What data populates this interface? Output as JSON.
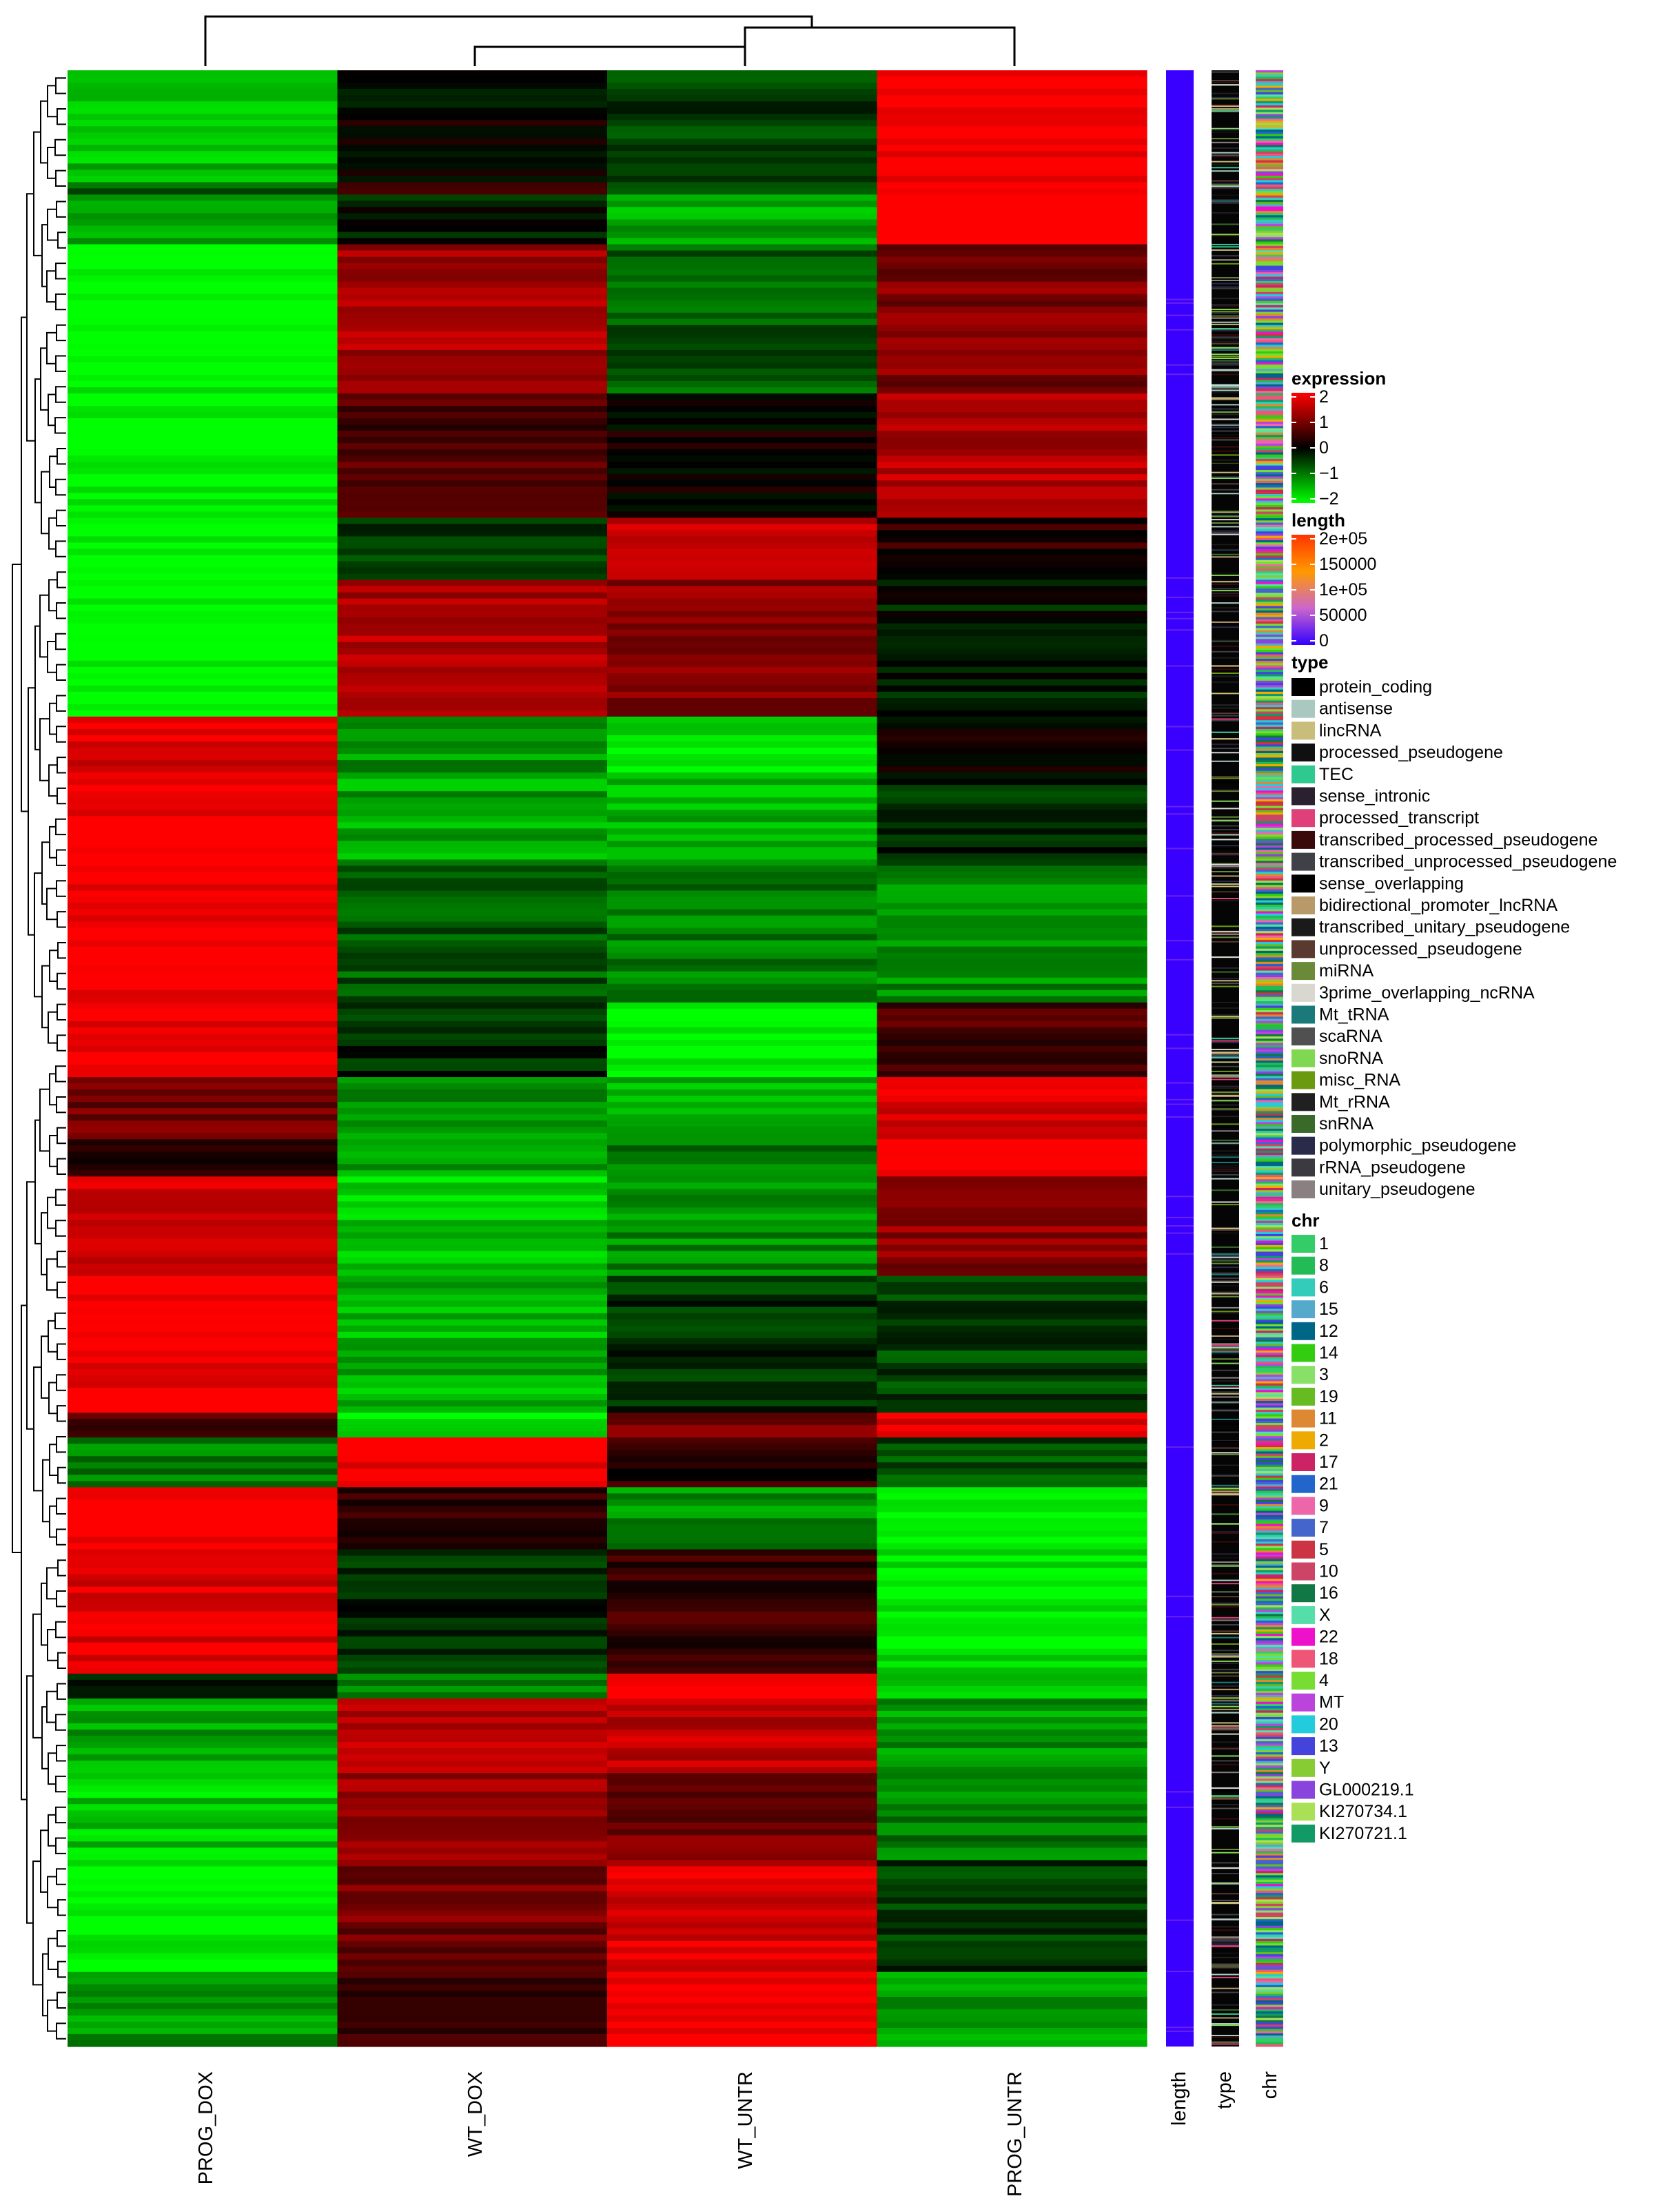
{
  "chart_data": {
    "type": "heatmap",
    "columns": [
      "PROG_DOX",
      "WT_DOX",
      "WT_UNTR",
      "PROG_UNTR"
    ],
    "column_order_clusters": [
      [
        0
      ],
      [
        [
          1,
          2
        ],
        3
      ]
    ],
    "expression_scale": {
      "min": -2,
      "max": 2
    },
    "row_blocks": [
      {
        "rows": 90,
        "values": [
          -1.5,
          0.0,
          -0.5,
          2.0
        ]
      },
      {
        "rows": 10,
        "values": [
          -0.8,
          0.3,
          -0.9,
          1.8
        ]
      },
      {
        "rows": 40,
        "values": [
          -1.2,
          -0.2,
          -1.3,
          2.3
        ]
      },
      {
        "rows": 120,
        "values": [
          -2.0,
          1.3,
          -0.7,
          1.0
        ]
      },
      {
        "rows": 100,
        "values": [
          -2.0,
          0.6,
          0.1,
          1.4
        ]
      },
      {
        "rows": 50,
        "values": [
          -2.0,
          -0.5,
          1.6,
          0.3
        ]
      },
      {
        "rows": 110,
        "values": [
          -2.0,
          1.4,
          1.1,
          -0.2
        ]
      },
      {
        "rows": 50,
        "values": [
          1.8,
          -1.2,
          -1.8,
          0.1
        ]
      },
      {
        "rows": 70,
        "values": [
          2.0,
          -1.3,
          -1.4,
          -0.3
        ]
      },
      {
        "rows": 110,
        "values": [
          2.0,
          -0.7,
          -1.0,
          -1.1
        ]
      },
      {
        "rows": 60,
        "values": [
          1.9,
          -0.3,
          -1.9,
          0.6
        ]
      },
      {
        "rows": 50,
        "values": [
          0.9,
          -1.2,
          -1.4,
          1.7
        ]
      },
      {
        "rows": 30,
        "values": [
          0.1,
          -1.3,
          -0.9,
          2.2
        ]
      },
      {
        "rows": 80,
        "values": [
          1.6,
          -1.6,
          -1.1,
          1.1
        ]
      },
      {
        "rows": 110,
        "values": [
          2.0,
          -1.4,
          -0.4,
          -0.5
        ]
      },
      {
        "rows": 20,
        "values": [
          0.6,
          -1.8,
          1.0,
          1.9
        ]
      },
      {
        "rows": 40,
        "values": [
          -1.0,
          2.0,
          0.3,
          -0.6
        ]
      },
      {
        "rows": 50,
        "values": [
          2.0,
          0.4,
          -1.1,
          -2.0
        ]
      },
      {
        "rows": 100,
        "values": [
          1.8,
          -0.3,
          0.4,
          -1.8
        ]
      },
      {
        "rows": 20,
        "values": [
          -0.4,
          -0.9,
          1.9,
          -1.6
        ]
      },
      {
        "rows": 60,
        "values": [
          -1.3,
          1.4,
          1.5,
          -1.2
        ]
      },
      {
        "rows": 70,
        "values": [
          -1.6,
          1.2,
          0.9,
          -1.0
        ]
      },
      {
        "rows": 90,
        "values": [
          -2.0,
          0.9,
          1.7,
          -0.4
        ]
      },
      {
        "rows": 60,
        "values": [
          -1.2,
          0.5,
          2.0,
          -1.3
        ]
      }
    ]
  },
  "labels": {
    "col_prog_dox": "PROG_DOX",
    "col_wt_dox": "WT_DOX",
    "col_wt_untr": "WT_UNTR",
    "col_prog_untr": "PROG_UNTR",
    "ann_length": "length",
    "ann_type": "type",
    "ann_chr": "chr"
  },
  "legend": {
    "expression": {
      "title": "expression",
      "ticks": [
        "2",
        "1",
        "0",
        "−1",
        "−2"
      ],
      "colors": [
        "#ff0000",
        "#000000",
        "#00ff00"
      ]
    },
    "length": {
      "title": "length",
      "ticks": [
        "2e+05",
        "150000",
        "1e+05",
        "50000",
        "0"
      ],
      "colors": [
        "#ff3300",
        "#ff9900",
        "#cc66cc",
        "#3300ff"
      ]
    },
    "type": {
      "title": "type",
      "items": [
        {
          "label": "protein_coding",
          "color": "#000000"
        },
        {
          "label": "antisense",
          "color": "#a8c8c0"
        },
        {
          "label": "lincRNA",
          "color": "#c8bd7a"
        },
        {
          "label": "processed_pseudogene",
          "color": "#101010"
        },
        {
          "label": "TEC",
          "color": "#2ec98f"
        },
        {
          "label": "sense_intronic",
          "color": "#2a2030"
        },
        {
          "label": "processed_transcript",
          "color": "#e0407a"
        },
        {
          "label": "transcribed_processed_pseudogene",
          "color": "#3a0a0a"
        },
        {
          "label": "transcribed_unprocessed_pseudogene",
          "color": "#404048"
        },
        {
          "label": "sense_overlapping",
          "color": "#000000"
        },
        {
          "label": "bidirectional_promoter_lncRNA",
          "color": "#b89a6a"
        },
        {
          "label": "transcribed_unitary_pseudogene",
          "color": "#1a1a1a"
        },
        {
          "label": "unprocessed_pseudogene",
          "color": "#5a3a30"
        },
        {
          "label": "miRNA",
          "color": "#6a8a3a"
        },
        {
          "label": "3prime_overlapping_ncRNA",
          "color": "#d8d8d0"
        },
        {
          "label": "Mt_tRNA",
          "color": "#1a7a7a"
        },
        {
          "label": "scaRNA",
          "color": "#505050"
        },
        {
          "label": "snoRNA",
          "color": "#80d850"
        },
        {
          "label": "misc_RNA",
          "color": "#6a9a10"
        },
        {
          "label": "Mt_rRNA",
          "color": "#202020"
        },
        {
          "label": "snRNA",
          "color": "#3a6a2a"
        },
        {
          "label": "polymorphic_pseudogene",
          "color": "#2a2a4a"
        },
        {
          "label": "rRNA_pseudogene",
          "color": "#3a3a40"
        },
        {
          "label": "unitary_pseudogene",
          "color": "#8a8080"
        }
      ]
    },
    "chr": {
      "title": "chr",
      "items": [
        {
          "label": "1",
          "color": "#33cc66"
        },
        {
          "label": "8",
          "color": "#22bb55"
        },
        {
          "label": "6",
          "color": "#33ccbb"
        },
        {
          "label": "15",
          "color": "#55aacc"
        },
        {
          "label": "12",
          "color": "#006688"
        },
        {
          "label": "14",
          "color": "#33cc11"
        },
        {
          "label": "3",
          "color": "#88e066"
        },
        {
          "label": "19",
          "color": "#66bb22"
        },
        {
          "label": "11",
          "color": "#dd8833"
        },
        {
          "label": "2",
          "color": "#eeaa00"
        },
        {
          "label": "17",
          "color": "#cc2266"
        },
        {
          "label": "21",
          "color": "#2266cc"
        },
        {
          "label": "9",
          "color": "#ee66aa"
        },
        {
          "label": "7",
          "color": "#4466cc"
        },
        {
          "label": "5",
          "color": "#cc3344"
        },
        {
          "label": "10",
          "color": "#cc4466"
        },
        {
          "label": "16",
          "color": "#117744"
        },
        {
          "label": "X",
          "color": "#55ddaa"
        },
        {
          "label": "22",
          "color": "#ee11cc"
        },
        {
          "label": "18",
          "color": "#ee5577"
        },
        {
          "label": "4",
          "color": "#77dd33"
        },
        {
          "label": "MT",
          "color": "#bb44dd"
        },
        {
          "label": "20",
          "color": "#22ccdd"
        },
        {
          "label": "13",
          "color": "#4444dd"
        },
        {
          "label": "Y",
          "color": "#88cc33"
        },
        {
          "label": "GL000219.1",
          "color": "#8844dd"
        },
        {
          "label": "KI270734.1",
          "color": "#aae055"
        },
        {
          "label": "KI270721.1",
          "color": "#119966"
        }
      ]
    }
  }
}
